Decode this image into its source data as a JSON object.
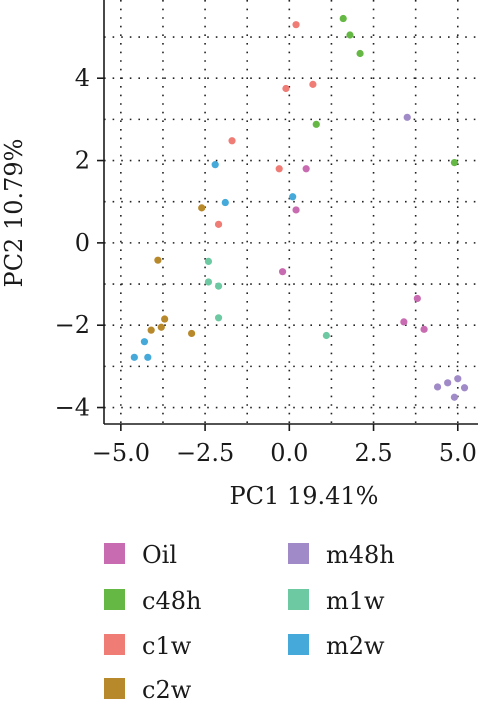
{
  "chart_data": {
    "type": "scatter",
    "title": "",
    "xlabel": "PC1 19.41%",
    "ylabel": "PC2 10.79%",
    "xlim": [
      -5.5,
      5.6
    ],
    "ylim": [
      -4.4,
      5.9
    ],
    "xticks": [
      -5.0,
      -2.5,
      0.0,
      2.5,
      5.0
    ],
    "xtick_labels": [
      "−5.0",
      "−2.5",
      "0.0",
      "2.5",
      "5.0"
    ],
    "yticks": [
      -4,
      -2,
      0,
      2,
      4
    ],
    "ytick_labels": [
      "−4",
      "−2",
      "0",
      "2",
      "4"
    ],
    "grid": true,
    "legend_position": "bottom",
    "series": [
      {
        "name": "Oil",
        "color": "#c96bb0",
        "points": [
          [
            0.5,
            1.8
          ],
          [
            0.2,
            0.8
          ],
          [
            -0.2,
            -0.7
          ],
          [
            3.8,
            -1.35
          ],
          [
            3.4,
            -1.92
          ],
          [
            4.0,
            -2.1
          ]
        ]
      },
      {
        "name": "c48h",
        "color": "#66b845",
        "points": [
          [
            1.6,
            5.45
          ],
          [
            1.8,
            5.05
          ],
          [
            2.1,
            4.6
          ],
          [
            0.8,
            2.88
          ],
          [
            4.9,
            1.95
          ]
        ]
      },
      {
        "name": "c1w",
        "color": "#f07c76",
        "points": [
          [
            0.2,
            5.3
          ],
          [
            0.7,
            3.85
          ],
          [
            -0.1,
            3.75
          ],
          [
            -1.7,
            2.48
          ],
          [
            -0.3,
            1.8
          ],
          [
            -2.1,
            0.45
          ]
        ]
      },
      {
        "name": "c2w",
        "color": "#b8892b",
        "points": [
          [
            -2.6,
            0.85
          ],
          [
            -3.9,
            -0.42
          ],
          [
            -3.7,
            -1.85
          ],
          [
            -3.8,
            -2.05
          ],
          [
            -4.1,
            -2.12
          ],
          [
            -2.9,
            -2.2
          ]
        ]
      },
      {
        "name": "m48h",
        "color": "#a08ac7",
        "points": [
          [
            3.5,
            3.05
          ],
          [
            5.0,
            -3.3
          ],
          [
            4.7,
            -3.4
          ],
          [
            4.4,
            -3.5
          ],
          [
            5.2,
            -3.52
          ],
          [
            4.9,
            -3.75
          ]
        ]
      },
      {
        "name": "m1w",
        "color": "#6cc9a2",
        "points": [
          [
            -2.4,
            -0.45
          ],
          [
            -2.4,
            -0.95
          ],
          [
            -2.1,
            -1.05
          ],
          [
            -2.1,
            -1.82
          ],
          [
            1.1,
            -2.25
          ]
        ]
      },
      {
        "name": "m2w",
        "color": "#45a9d9",
        "points": [
          [
            -2.2,
            1.9
          ],
          [
            -1.9,
            0.98
          ],
          [
            0.1,
            1.12
          ],
          [
            -4.3,
            -2.4
          ],
          [
            -4.6,
            -2.78
          ],
          [
            -4.2,
            -2.78
          ]
        ]
      }
    ]
  }
}
